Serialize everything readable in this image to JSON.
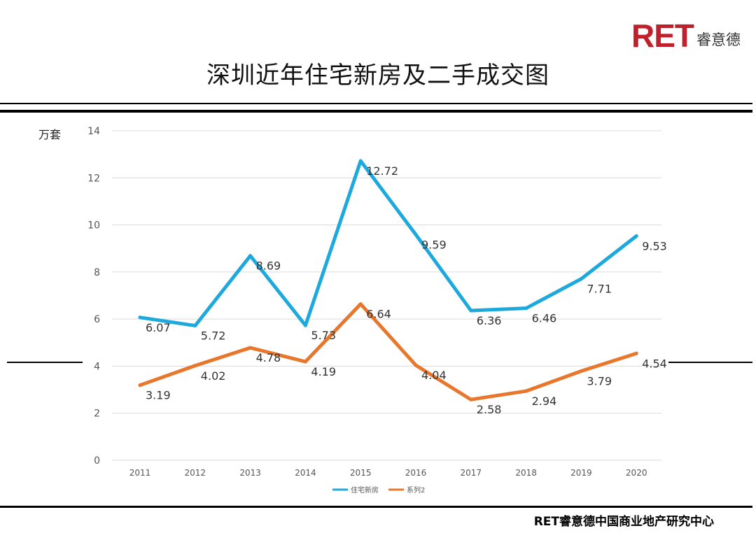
{
  "logo": {
    "main": "RET",
    "sub": "睿意德"
  },
  "title": "深圳近年住宅新房及二手成交图",
  "footer": "RET睿意德中国商业地产研究中心",
  "chart_data": {
    "type": "line",
    "title": "深圳近年住宅新房及二手成交图",
    "ylabel": "万套",
    "xlabel": "",
    "categories": [
      "2011",
      "2012",
      "2013",
      "2014",
      "2015",
      "2016",
      "2017",
      "2018",
      "2019",
      "2020"
    ],
    "ylim": [
      0,
      14
    ],
    "yticks": [
      0,
      2,
      4,
      6,
      8,
      10,
      12,
      14
    ],
    "grid": true,
    "legend_position": "bottom",
    "series": [
      {
        "name": "住宅新房",
        "color": "#1ea9dc",
        "values": [
          6.07,
          5.72,
          8.69,
          5.73,
          12.72,
          9.59,
          6.36,
          6.46,
          7.71,
          9.53
        ]
      },
      {
        "name": "系列2",
        "color": "#e8772e",
        "values": [
          3.19,
          4.02,
          4.78,
          4.19,
          6.64,
          4.04,
          2.58,
          2.94,
          3.79,
          4.54
        ]
      }
    ]
  }
}
